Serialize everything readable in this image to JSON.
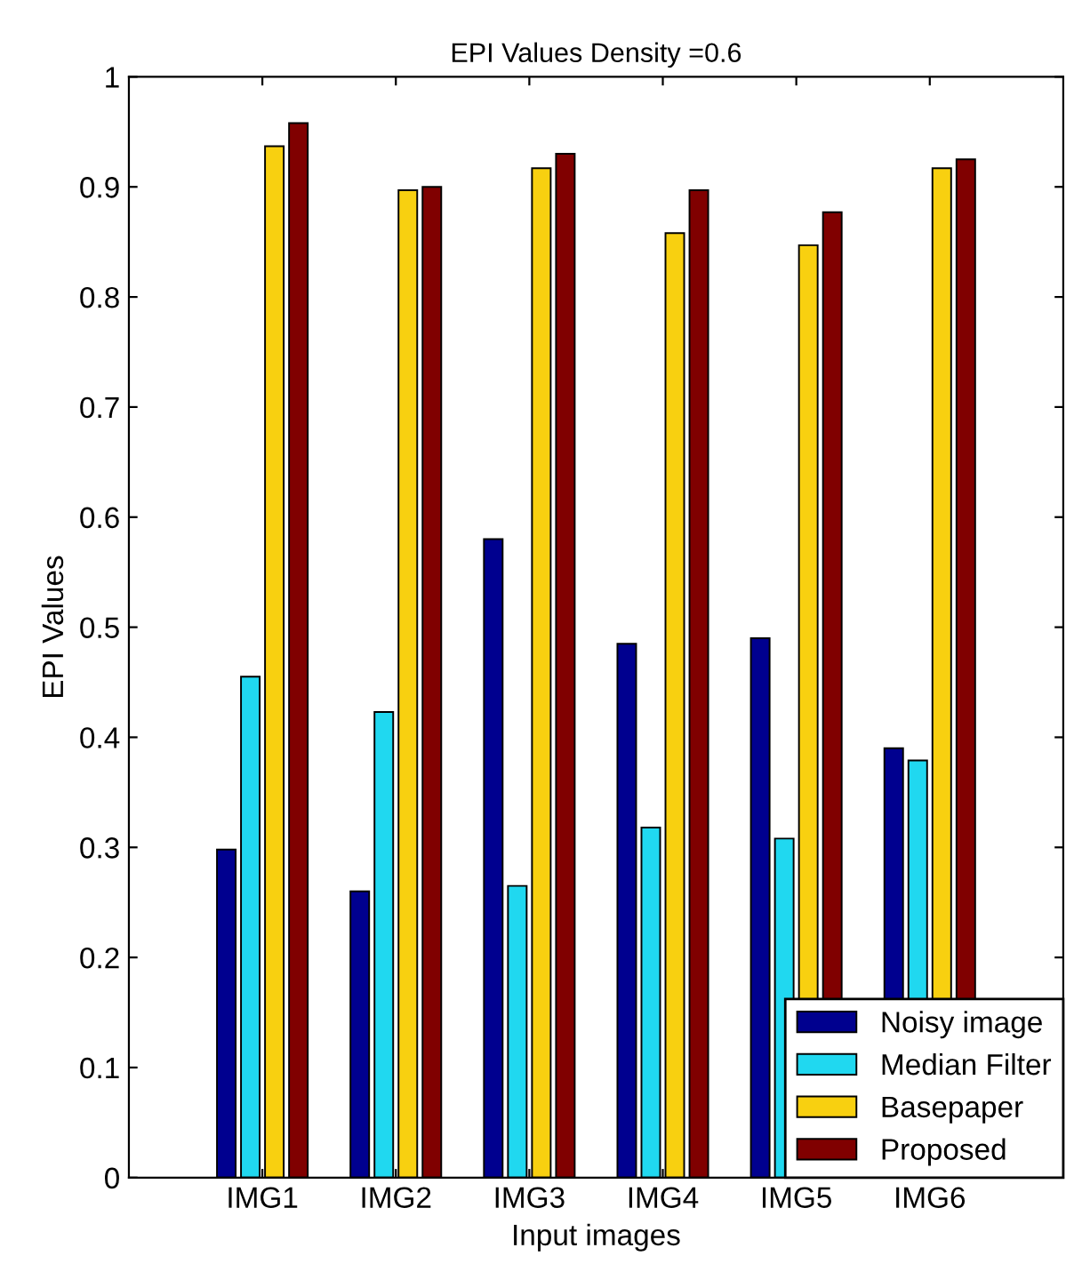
{
  "chart_data": {
    "type": "bar",
    "title": "EPI Values Density =0.6",
    "xlabel": "Input images",
    "ylabel": "EPI Values",
    "categories": [
      "IMG1",
      "IMG2",
      "IMG3",
      "IMG4",
      "IMG5",
      "IMG6"
    ],
    "series": [
      {
        "name": "Noisy image",
        "color": "#00008f",
        "values": [
          0.298,
          0.26,
          0.58,
          0.485,
          0.49,
          0.39
        ]
      },
      {
        "name": "Median Filter",
        "color": "#20d8f0",
        "values": [
          0.455,
          0.423,
          0.265,
          0.318,
          0.308,
          0.379
        ]
      },
      {
        "name": "Basepaper",
        "color": "#f8d010",
        "values": [
          0.937,
          0.897,
          0.917,
          0.858,
          0.847,
          0.917
        ]
      },
      {
        "name": "Proposed",
        "color": "#800000",
        "values": [
          0.958,
          0.9,
          0.93,
          0.897,
          0.877,
          0.925
        ]
      }
    ],
    "ylim": [
      0,
      1
    ],
    "yticks": [
      0,
      0.1,
      0.2,
      0.3,
      0.4,
      0.5,
      0.6,
      0.7,
      0.8,
      0.9,
      1
    ],
    "grid": false,
    "legend": "lower right"
  }
}
